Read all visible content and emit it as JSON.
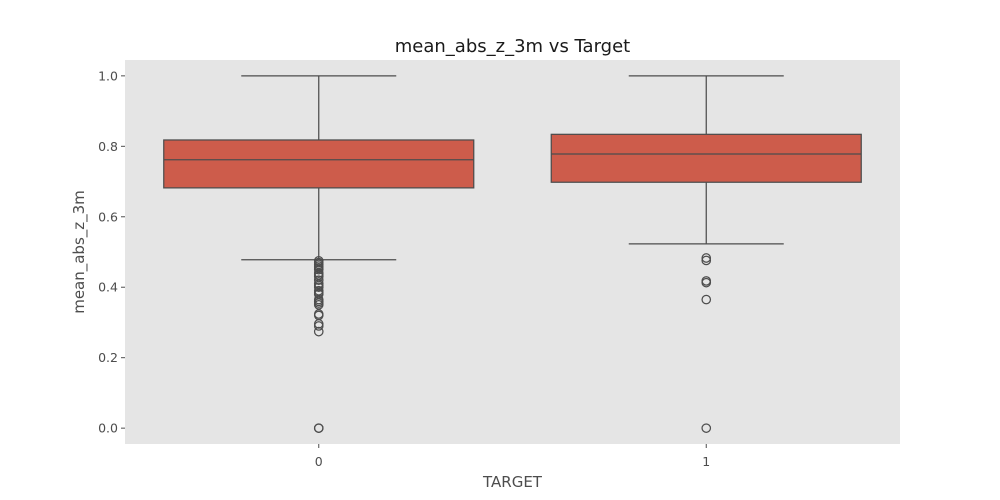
{
  "chart_data": {
    "type": "box",
    "title": "mean_abs_z_3m vs Target",
    "xlabel": "TARGET",
    "ylabel": "mean_abs_z_3m",
    "ylim": [
      -0.045,
      1.045
    ],
    "yticks": [
      0.0,
      0.2,
      0.4,
      0.6,
      0.8,
      1.0
    ],
    "ytick_labels": [
      "0.0",
      "0.2",
      "0.4",
      "0.6",
      "0.8",
      "1.0"
    ],
    "grid": false,
    "categories": [
      "0",
      "1"
    ],
    "boxes": [
      {
        "category": "0",
        "whisker_low": 0.478,
        "q1": 0.682,
        "median": 0.762,
        "q3": 0.818,
        "whisker_high": 1.0,
        "outliers": [
          0.0,
          0.0,
          0.274,
          0.29,
          0.296,
          0.32,
          0.324,
          0.35,
          0.355,
          0.36,
          0.365,
          0.38,
          0.385,
          0.39,
          0.4,
          0.405,
          0.41,
          0.42,
          0.43,
          0.435,
          0.44,
          0.45,
          0.455,
          0.46,
          0.465,
          0.47,
          0.475
        ]
      },
      {
        "category": "1",
        "whisker_low": 0.523,
        "q1": 0.698,
        "median": 0.778,
        "q3": 0.834,
        "whisker_high": 1.0,
        "outliers": [
          0.0,
          0.365,
          0.413,
          0.418,
          0.476,
          0.483
        ]
      }
    ],
    "box_color": "#cd5c4b",
    "edge_color": "#4d4d4d",
    "background_color": "#e5e5e5"
  }
}
